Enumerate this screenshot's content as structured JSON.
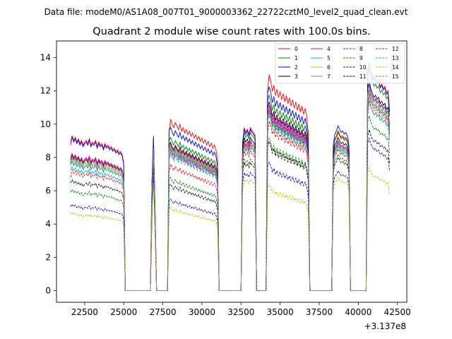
{
  "header": {
    "suptitle": "Data file: modeM0/AS1A08_007T01_9000003362_22722cztM0_level2_quad_clean.evt"
  },
  "chart_data": {
    "type": "line",
    "title": "Quadrant 2 module wise count rates with 100.0s bins.",
    "xlabel": "",
    "ylabel": "",
    "x_offset_label": "+3.137e8",
    "xlim": [
      20700,
      43100
    ],
    "ylim": [
      -0.7,
      15
    ],
    "xticks": [
      22500,
      25000,
      27500,
      30000,
      32500,
      35000,
      37500,
      40000,
      42500
    ],
    "yticks": [
      0,
      2,
      4,
      6,
      8,
      10,
      12,
      14
    ],
    "xtick_labels": [
      "22500",
      "25000",
      "27500",
      "30000",
      "32500",
      "35000",
      "37500",
      "40000",
      "42500"
    ],
    "ytick_labels": [
      "0",
      "2",
      "4",
      "6",
      "8",
      "10",
      "12",
      "14"
    ],
    "legend_loc": "top-right",
    "on_segments": [
      [
        21600,
        25000
      ],
      [
        26800,
        27000
      ],
      [
        27900,
        31000
      ],
      [
        32600,
        33400
      ],
      [
        34200,
        36800
      ],
      [
        38400,
        39400
      ],
      [
        40600,
        42000
      ]
    ],
    "segment_shapes": [
      [
        1.0,
        0.98,
        0.95,
        0.97,
        0.94,
        0.96,
        0.93,
        0.95,
        0.92,
        0.94,
        0.95,
        0.93,
        0.96,
        0.92,
        0.94,
        0.93,
        0.95,
        0.91,
        0.94,
        0.92,
        0.93,
        0.9,
        0.93,
        0.91,
        0.92,
        0.9,
        0.91,
        0.89,
        0.9,
        0.88,
        0.89,
        0.87,
        0.88,
        0.86,
        0.85
      ],
      [
        1.0,
        0.98,
        0.96
      ],
      [
        1.06,
        1.0,
        0.97,
        0.95,
        0.98,
        0.96,
        0.94,
        0.97,
        0.93,
        0.95,
        0.92,
        0.94,
        0.91,
        0.93,
        0.9,
        0.92,
        0.89,
        0.91,
        0.88,
        0.9,
        0.87,
        0.89,
        0.86,
        0.88,
        0.85,
        0.87,
        0.84,
        0.86,
        0.83,
        0.85,
        0.82,
        0.8
      ],
      [
        0.95,
        1.0,
        0.97,
        0.99,
        0.96,
        1.0,
        0.98,
        0.97,
        1.0
      ],
      [
        1.06,
        1.03,
        1.0,
        0.95,
        0.98,
        0.93,
        0.96,
        0.92,
        0.95,
        0.91,
        0.94,
        0.9,
        0.93,
        0.89,
        0.92,
        0.88,
        0.91,
        0.87,
        0.9,
        0.86,
        0.89,
        0.85,
        0.88,
        0.84,
        0.87,
        0.83,
        0.82
      ],
      [
        0.92,
        0.95,
        0.97,
        1.0,
        0.98,
        0.96,
        0.97,
        0.95,
        0.96,
        0.94,
        0.95
      ],
      [
        1.08,
        1.04,
        1.0,
        0.98,
        0.96,
        0.97,
        0.95,
        0.96,
        0.93,
        0.94,
        0.92,
        0.93,
        0.9,
        0.91,
        0.89
      ]
    ],
    "segment_edges": {
      "start": [
        0.08,
        0.5,
        0.12,
        0.06,
        0.1,
        0.06,
        0.12
      ],
      "end": [
        0.05,
        0.45,
        0.05,
        0.05,
        0.08,
        0.07,
        0.08
      ]
    },
    "gap_value": 0,
    "series": [
      {
        "name": "0",
        "color": "#ff0000",
        "dashed": false,
        "levels": [
          9.5,
          9.5,
          10.3,
          9.8,
          12.6,
          9.6,
          13.2
        ]
      },
      {
        "name": "1",
        "color": "#008000",
        "dashed": false,
        "levels": [
          8.4,
          9.2,
          9.2,
          9.5,
          11.4,
          9.5,
          12.8
        ]
      },
      {
        "name": "2",
        "color": "#0000ff",
        "dashed": false,
        "levels": [
          9.4,
          9.4,
          9.8,
          9.7,
          11.9,
          9.9,
          13.1
        ]
      },
      {
        "name": "3",
        "color": "#000000",
        "dashed": false,
        "levels": [
          8.3,
          8.9,
          8.9,
          9.2,
          11.0,
          9.2,
          12.1
        ]
      },
      {
        "name": "4",
        "color": "#bf00bf",
        "dashed": false,
        "levels": [
          8.4,
          8.8,
          8.8,
          9.0,
          10.8,
          9.0,
          11.9
        ]
      },
      {
        "name": "5",
        "color": "#00bfbf",
        "dashed": false,
        "levels": [
          7.6,
          8.5,
          8.5,
          8.8,
          10.4,
          8.7,
          11.6
        ]
      },
      {
        "name": "6",
        "color": "#bfbf00",
        "dashed": false,
        "levels": [
          8.2,
          8.6,
          8.7,
          8.8,
          10.6,
          8.8,
          11.5
        ]
      },
      {
        "name": "7",
        "color": "#808080",
        "dashed": false,
        "levels": [
          7.9,
          8.7,
          8.6,
          8.7,
          10.5,
          8.9,
          11.8
        ]
      },
      {
        "name": "8",
        "color": "#ff0000",
        "dashed": true,
        "levels": [
          7.4,
          8.3,
          7.6,
          8.4,
          9.9,
          8.5,
          11.0
        ]
      },
      {
        "name": "9",
        "color": "#008000",
        "dashed": true,
        "levels": [
          6.2,
          7.9,
          6.8,
          7.9,
          8.9,
          8.2,
          10.1
        ]
      },
      {
        "name": "10",
        "color": "#0000ff",
        "dashed": true,
        "levels": [
          5.3,
          7.0,
          5.5,
          7.1,
          7.5,
          7.2,
          8.8
        ]
      },
      {
        "name": "11",
        "color": "#000000",
        "dashed": true,
        "levels": [
          6.8,
          7.6,
          6.4,
          7.7,
          8.7,
          8.0,
          9.3
        ]
      },
      {
        "name": "12",
        "color": "#bf00bf",
        "dashed": true,
        "levels": [
          8.3,
          8.6,
          8.4,
          8.9,
          10.6,
          9.0,
          11.4
        ]
      },
      {
        "name": "13",
        "color": "#00bfbf",
        "dashed": true,
        "levels": [
          8.0,
          8.4,
          8.2,
          8.6,
          10.2,
          8.6,
          11.0
        ]
      },
      {
        "name": "14",
        "color": "#bfbf00",
        "dashed": true,
        "levels": [
          4.8,
          6.6,
          5.0,
          6.7,
          6.2,
          6.8,
          7.1
        ]
      },
      {
        "name": "15",
        "color": "#808080",
        "dashed": true,
        "levels": [
          8.1,
          8.5,
          8.3,
          8.7,
          10.3,
          8.8,
          11.2
        ]
      }
    ]
  }
}
